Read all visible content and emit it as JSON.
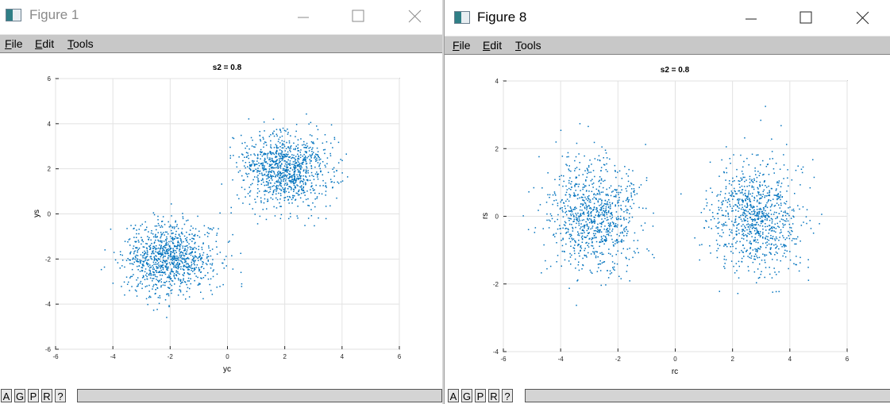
{
  "windows": [
    {
      "title": "Figure 1",
      "menu": [
        "File",
        "Edit",
        "Tools"
      ],
      "status_buttons": [
        "A",
        "G",
        "P",
        "R",
        "?"
      ],
      "chart_data": {
        "type": "scatter",
        "title": "s2 = 0.8",
        "xlabel": "yc",
        "ylabel": "ys",
        "xlim": [
          -6,
          6
        ],
        "ylim": [
          -6,
          6
        ],
        "xticks": [
          "-6",
          "-4",
          "-2",
          "0",
          "2",
          "4",
          "6"
        ],
        "yticks": [
          "-6",
          "-4",
          "-2",
          "0",
          "2",
          "4",
          "6"
        ],
        "grid": true,
        "marker_color": "#0072bd",
        "clusters": [
          {
            "center": [
              -2,
              -2
            ],
            "spread": [
              0.8,
              0.8
            ],
            "count": 1000
          },
          {
            "center": [
              2,
              2
            ],
            "spread": [
              0.8,
              0.8
            ],
            "count": 1000
          }
        ]
      }
    },
    {
      "title": "Figure 8",
      "menu": [
        "File",
        "Edit",
        "Tools"
      ],
      "status_buttons": [
        "A",
        "G",
        "P",
        "R",
        "?"
      ],
      "chart_data": {
        "type": "scatter",
        "title": "s2 = 0.8",
        "xlabel": "rc",
        "ylabel": "rs",
        "xlim": [
          -6,
          6
        ],
        "ylim": [
          -4,
          4
        ],
        "xticks": [
          "-6",
          "-4",
          "-2",
          "0",
          "2",
          "4",
          "6"
        ],
        "yticks": [
          "-4",
          "-2",
          "0",
          "2",
          "4"
        ],
        "grid": true,
        "marker_color": "#0072bd",
        "clusters": [
          {
            "center": [
              -2.8,
              0
            ],
            "spread": [
              0.8,
              0.8
            ],
            "count": 900
          },
          {
            "center": [
              2.8,
              0
            ],
            "spread": [
              0.8,
              0.8
            ],
            "count": 900
          }
        ]
      }
    }
  ]
}
